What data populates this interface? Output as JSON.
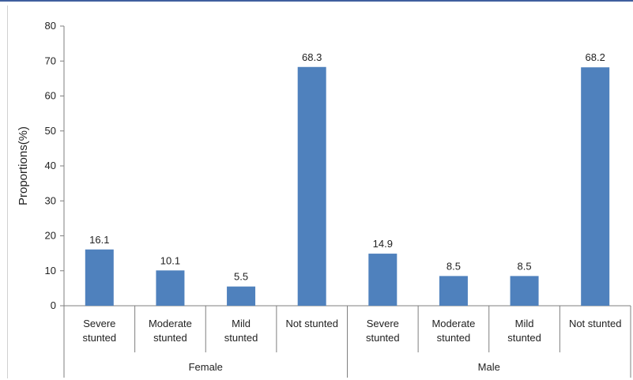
{
  "chart_data": {
    "type": "bar",
    "ylabel": "Proportions(%)",
    "ylim": [
      0,
      80
    ],
    "yticks": [
      0,
      10,
      20,
      30,
      40,
      50,
      60,
      70,
      80
    ],
    "groups": [
      {
        "name": "Female",
        "categories": [
          [
            "Severe",
            "stunted"
          ],
          [
            "Moderate",
            "stunted"
          ],
          [
            "Mild",
            "stunted"
          ],
          [
            "Not stunted"
          ]
        ],
        "values": [
          16.1,
          10.1,
          5.5,
          68.3
        ],
        "labels": [
          "16.1",
          "10.1",
          "5.5",
          "68.3"
        ]
      },
      {
        "name": "Male",
        "categories": [
          [
            "Severe",
            "stunted"
          ],
          [
            "Moderate",
            "stunted"
          ],
          [
            "Mild",
            "stunted"
          ],
          [
            "Not stunted"
          ]
        ],
        "values": [
          14.9,
          8.5,
          8.5,
          68.2
        ],
        "labels": [
          "14.9",
          "8.5",
          "8.5",
          "68.2"
        ]
      }
    ],
    "bar_color": "#4f81bd",
    "grid": false,
    "legend": false
  }
}
